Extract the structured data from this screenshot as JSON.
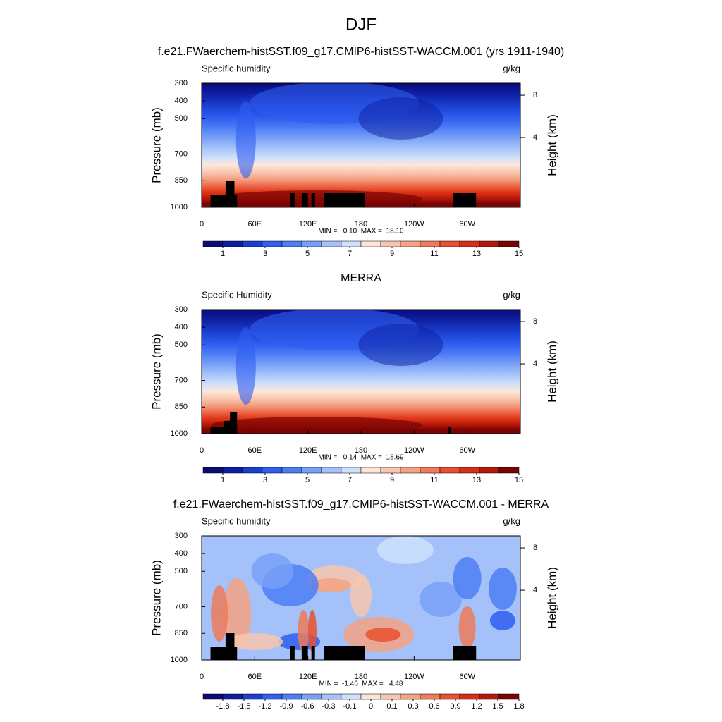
{
  "title": "DJF",
  "chart_data": [
    {
      "type": "contour",
      "title": "f.e21.FWaerchem-histSST.f09_g17.CMIP6-histSST-WACCM.001 (yrs 1911-1940)",
      "left_label": "Specific humidity",
      "right_label": "g/kg",
      "y_label": "Pressure (mb)",
      "y2_label": "Height (km)",
      "xlim": [
        0,
        360
      ],
      "xticks": [
        0,
        {
          "value": 60,
          "label": "60E"
        },
        {
          "value": 120,
          "label": "120E"
        },
        180,
        {
          "value": 240,
          "label": "120W"
        },
        {
          "value": 300,
          "label": "60W"
        }
      ],
      "ylim": [
        1000,
        300
      ],
      "yticks": [
        300,
        400,
        500,
        700,
        850,
        1000
      ],
      "y2ticks": [
        8,
        4
      ],
      "stats": "MIN =   0.10  MAX =  18.10",
      "colorbar_colors": [
        "#0a0a78",
        "#0d1fa0",
        "#1a3fcf",
        "#2f5ef0",
        "#4d7ef5",
        "#78a0f7",
        "#a4c2f9",
        "#cfe0fb",
        "#fde6d8",
        "#f8c6ae",
        "#f4a283",
        "#ef7a5c",
        "#e8512f",
        "#d92d14",
        "#b3180a",
        "#7a0403"
      ],
      "colorbar_ticks": [
        1,
        3,
        5,
        7,
        9,
        11,
        13,
        15
      ]
    },
    {
      "type": "contour",
      "title": "MERRA",
      "left_label": "Specific Humidity",
      "right_label": "g/kg",
      "y_label": "Pressure (mb)",
      "y2_label": "Height (km)",
      "xlim": [
        0,
        360
      ],
      "xticks": [
        0,
        {
          "value": 60,
          "label": "60E"
        },
        {
          "value": 120,
          "label": "120E"
        },
        180,
        {
          "value": 240,
          "label": "120W"
        },
        {
          "value": 300,
          "label": "60W"
        }
      ],
      "ylim": [
        1000,
        300
      ],
      "yticks": [
        300,
        400,
        500,
        700,
        850,
        1000
      ],
      "y2ticks": [
        8,
        4
      ],
      "stats": "MIN =   0.14  MAX =  18.69",
      "colorbar_colors": [
        "#0a0a78",
        "#0d1fa0",
        "#1a3fcf",
        "#2f5ef0",
        "#4d7ef5",
        "#78a0f7",
        "#a4c2f9",
        "#cfe0fb",
        "#fde6d8",
        "#f8c6ae",
        "#f4a283",
        "#ef7a5c",
        "#e8512f",
        "#d92d14",
        "#b3180a",
        "#7a0403"
      ],
      "colorbar_ticks": [
        1,
        3,
        5,
        7,
        9,
        11,
        13,
        15
      ]
    },
    {
      "type": "contour",
      "title": "f.e21.FWaerchem-histSST.f09_g17.CMIP6-histSST-WACCM.001 - MERRA",
      "left_label": "Specific humidity",
      "right_label": "g/kg",
      "y_label": "Pressure (mb)",
      "y2_label": "Height (km)",
      "xlim": [
        0,
        360
      ],
      "xticks": [
        0,
        {
          "value": 60,
          "label": "60E"
        },
        {
          "value": 120,
          "label": "120E"
        },
        180,
        {
          "value": 240,
          "label": "120W"
        },
        {
          "value": 300,
          "label": "60W"
        }
      ],
      "ylim": [
        1000,
        300
      ],
      "yticks": [
        300,
        400,
        500,
        700,
        850,
        1000
      ],
      "y2ticks": [
        8,
        4
      ],
      "stats": "MIN =  -1.46  MAX =   4.48",
      "colorbar_colors": [
        "#0a0a78",
        "#0d1fa0",
        "#1a3fcf",
        "#2f5ef0",
        "#4d7ef5",
        "#78a0f7",
        "#a4c2f9",
        "#cfe0fb",
        "#fde6d8",
        "#f8c6ae",
        "#f4a283",
        "#ef7a5c",
        "#e8512f",
        "#d92d14",
        "#b3180a",
        "#7a0403"
      ],
      "colorbar_ticks": [
        -1.8,
        -1.5,
        -1.2,
        -0.9,
        -0.6,
        -0.3,
        -0.1,
        0,
        0.1,
        0.3,
        0.6,
        0.9,
        1.2,
        1.5,
        1.8
      ]
    }
  ]
}
